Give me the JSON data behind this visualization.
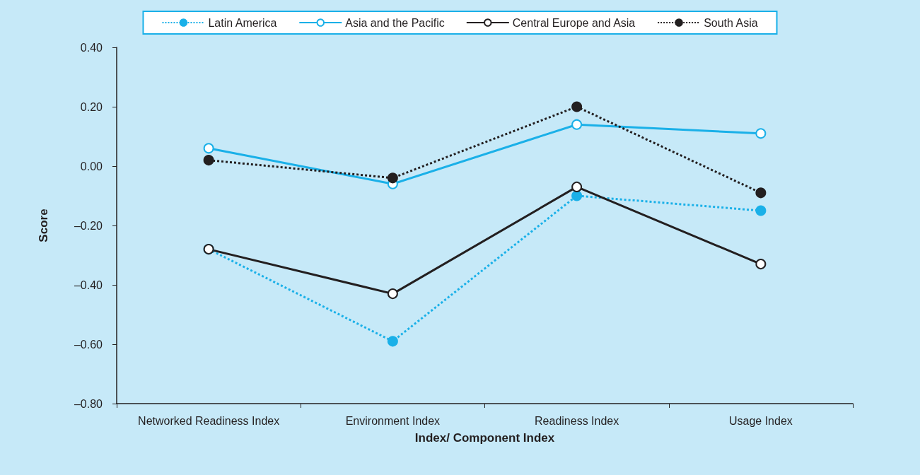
{
  "chart_data": {
    "type": "line",
    "xlabel": "Index/ Component Index",
    "ylabel": "Score",
    "categories": [
      "Networked Readiness Index",
      "Environment Index",
      "Readiness Index",
      "Usage Index"
    ],
    "series": [
      {
        "name": "Latin America",
        "color": "#1ab0e8",
        "line_style": "dotted",
        "values": [
          -0.28,
          -0.59,
          -0.1,
          -0.15
        ]
      },
      {
        "name": "Asia and the Pacific",
        "color": "#1ab0e8",
        "line_style": "solid",
        "values": [
          0.06,
          -0.06,
          0.14,
          0.11
        ]
      },
      {
        "name": "Central Europe and Asia",
        "color": "#231f20",
        "line_style": "solid",
        "values": [
          -0.28,
          -0.43,
          -0.07,
          -0.33
        ]
      },
      {
        "name": "South Asia",
        "color": "#231f20",
        "line_style": "dotted",
        "values": [
          0.02,
          -0.04,
          0.2,
          -0.09
        ]
      }
    ],
    "ylim": [
      -0.8,
      0.4
    ],
    "yticks": [
      {
        "value": -0.8,
        "label": "–0.80"
      },
      {
        "value": -0.6,
        "label": "–0.60"
      },
      {
        "value": -0.4,
        "label": "–0.40"
      },
      {
        "value": -0.2,
        "label": "–0.20"
      },
      {
        "value": 0,
        "label": "0.00"
      },
      {
        "value": 0.2,
        "label": "0.20"
      },
      {
        "value": 0.4,
        "label": "0.40"
      }
    ],
    "grid": false,
    "legend": "top",
    "marker": "circle"
  }
}
